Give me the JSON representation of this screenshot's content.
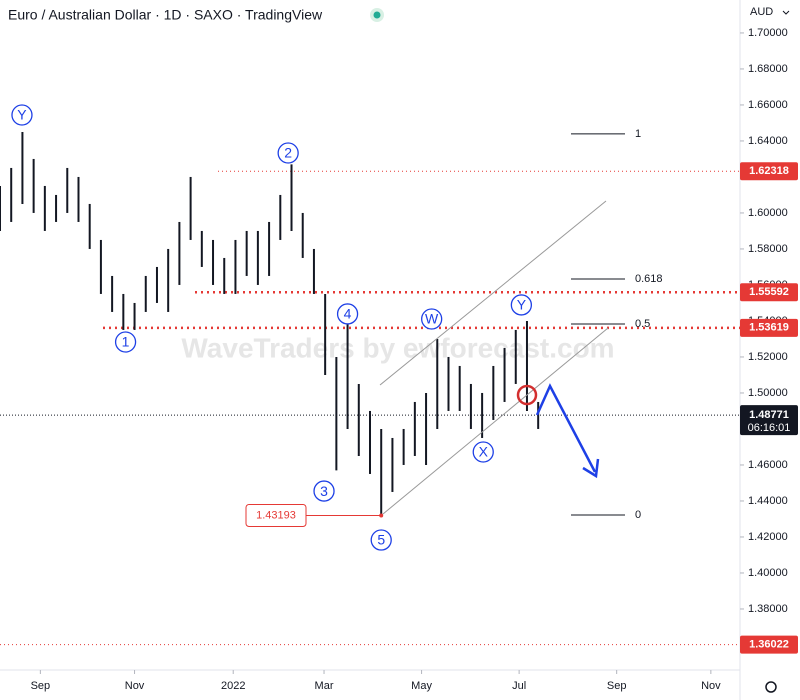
{
  "chart_data": {
    "type": "ohlc",
    "title": "Euro / Australian Dollar · 1D · SAXO · TradingView",
    "currency": "AUD",
    "watermark": "WaveTraders by ewforecast.com",
    "x": [
      0,
      1,
      2,
      3,
      4,
      5,
      6,
      7,
      8,
      9,
      10,
      11,
      12,
      13,
      14,
      15,
      16,
      17,
      18,
      19,
      20,
      21,
      22,
      23,
      24,
      25,
      26,
      27,
      28,
      29,
      30,
      31,
      32,
      33,
      34,
      35,
      36,
      37,
      38,
      39,
      40,
      41,
      42,
      43,
      44,
      45,
      46,
      47,
      48
    ],
    "high": [
      1.615,
      1.625,
      1.645,
      1.63,
      1.615,
      1.61,
      1.625,
      1.62,
      1.605,
      1.585,
      1.565,
      1.555,
      1.55,
      1.565,
      1.57,
      1.58,
      1.595,
      1.62,
      1.59,
      1.585,
      1.575,
      1.585,
      1.59,
      1.59,
      1.595,
      1.61,
      1.627,
      1.6,
      1.58,
      1.555,
      1.52,
      1.54,
      1.505,
      1.49,
      1.48,
      1.475,
      1.48,
      1.495,
      1.5,
      1.53,
      1.52,
      1.515,
      1.505,
      1.5,
      1.515,
      1.525,
      1.535,
      1.54,
      1.495
    ],
    "low": [
      1.59,
      1.595,
      1.605,
      1.6,
      1.59,
      1.595,
      1.6,
      1.595,
      1.58,
      1.555,
      1.545,
      1.535,
      1.535,
      1.545,
      1.55,
      1.545,
      1.56,
      1.585,
      1.57,
      1.56,
      1.555,
      1.555,
      1.565,
      1.56,
      1.565,
      1.585,
      1.59,
      1.575,
      1.555,
      1.51,
      1.457,
      1.48,
      1.465,
      1.455,
      1.432,
      1.445,
      1.46,
      1.465,
      1.46,
      1.48,
      1.49,
      1.49,
      1.48,
      1.475,
      1.485,
      1.495,
      1.505,
      1.49,
      1.48
    ],
    "color": "#131722",
    "xlim": [
      0,
      66
    ],
    "xticks": [
      {
        "value": 3.6,
        "label": "Sep"
      },
      {
        "value": 12.0,
        "label": "Nov"
      },
      {
        "value": 20.8,
        "label": "2022"
      },
      {
        "value": 28.9,
        "label": "Mar"
      },
      {
        "value": 37.6,
        "label": "May"
      },
      {
        "value": 46.3,
        "label": "Jul"
      },
      {
        "value": 55.0,
        "label": "Sep"
      },
      {
        "value": 63.4,
        "label": "Nov"
      }
    ],
    "ylim": [
      1.3461,
      1.7183
    ],
    "yticks": [
      {
        "value": 1.36,
        "label": "1.36000"
      },
      {
        "value": 1.38,
        "label": "1.38000"
      },
      {
        "value": 1.4,
        "label": "1.40000"
      },
      {
        "value": 1.42,
        "label": "1.42000"
      },
      {
        "value": 1.44,
        "label": "1.44000"
      },
      {
        "value": 1.46,
        "label": "1.46000"
      },
      {
        "value": 1.48,
        "label": "1.48000"
      },
      {
        "value": 1.5,
        "label": "1.50000"
      },
      {
        "value": 1.52,
        "label": "1.52000"
      },
      {
        "value": 1.54,
        "label": "1.54000"
      },
      {
        "value": 1.56,
        "label": "1.56000"
      },
      {
        "value": 1.58,
        "label": "1.58000"
      },
      {
        "value": 1.6,
        "label": "1.60000"
      },
      {
        "value": 1.62,
        "label": "1.62000"
      },
      {
        "value": 1.64,
        "label": "1.64000"
      },
      {
        "value": 1.66,
        "label": "1.66000"
      },
      {
        "value": 1.68,
        "label": "1.68000"
      },
      {
        "value": 1.7,
        "label": "1.70000"
      }
    ],
    "price_levels": [
      {
        "value": 1.62318,
        "color": "#e53935",
        "bold": false
      },
      {
        "value": 1.55592,
        "color": "#e53935",
        "bold": true
      },
      {
        "value": 1.53619,
        "color": "#e53935",
        "bold": true
      },
      {
        "value": 1.36022,
        "color": "#e53935",
        "bold": false
      }
    ],
    "last_price": 1.48771,
    "last_price_timer": "06:16:01",
    "low_marker": {
      "value": 1.43193,
      "x": 34
    },
    "fib_levels": [
      {
        "label": "1",
        "value": 1.6439
      },
      {
        "label": "0.618",
        "value": 1.5633
      },
      {
        "label": "0.5",
        "value": 1.5383
      },
      {
        "label": "0",
        "value": 1.4322
      }
    ],
    "wave_labels": [
      {
        "label": "Y",
        "x": 1.96,
        "y": 1.6544
      },
      {
        "label": "2",
        "x": 25.7,
        "y": 1.6333
      },
      {
        "label": "1",
        "x": 11.2,
        "y": 1.5283
      },
      {
        "label": "4",
        "x": 31.0,
        "y": 1.5439
      },
      {
        "label": "W",
        "x": 38.5,
        "y": 1.5411
      },
      {
        "label": "3",
        "x": 28.9,
        "y": 1.4455
      },
      {
        "label": "5",
        "x": 34.0,
        "y": 1.4183
      },
      {
        "label": "X",
        "x": 43.1,
        "y": 1.4672
      },
      {
        "label": "Y",
        "x": 46.5,
        "y": 1.5489
      }
    ],
    "wave_color": "#1e40e6"
  }
}
